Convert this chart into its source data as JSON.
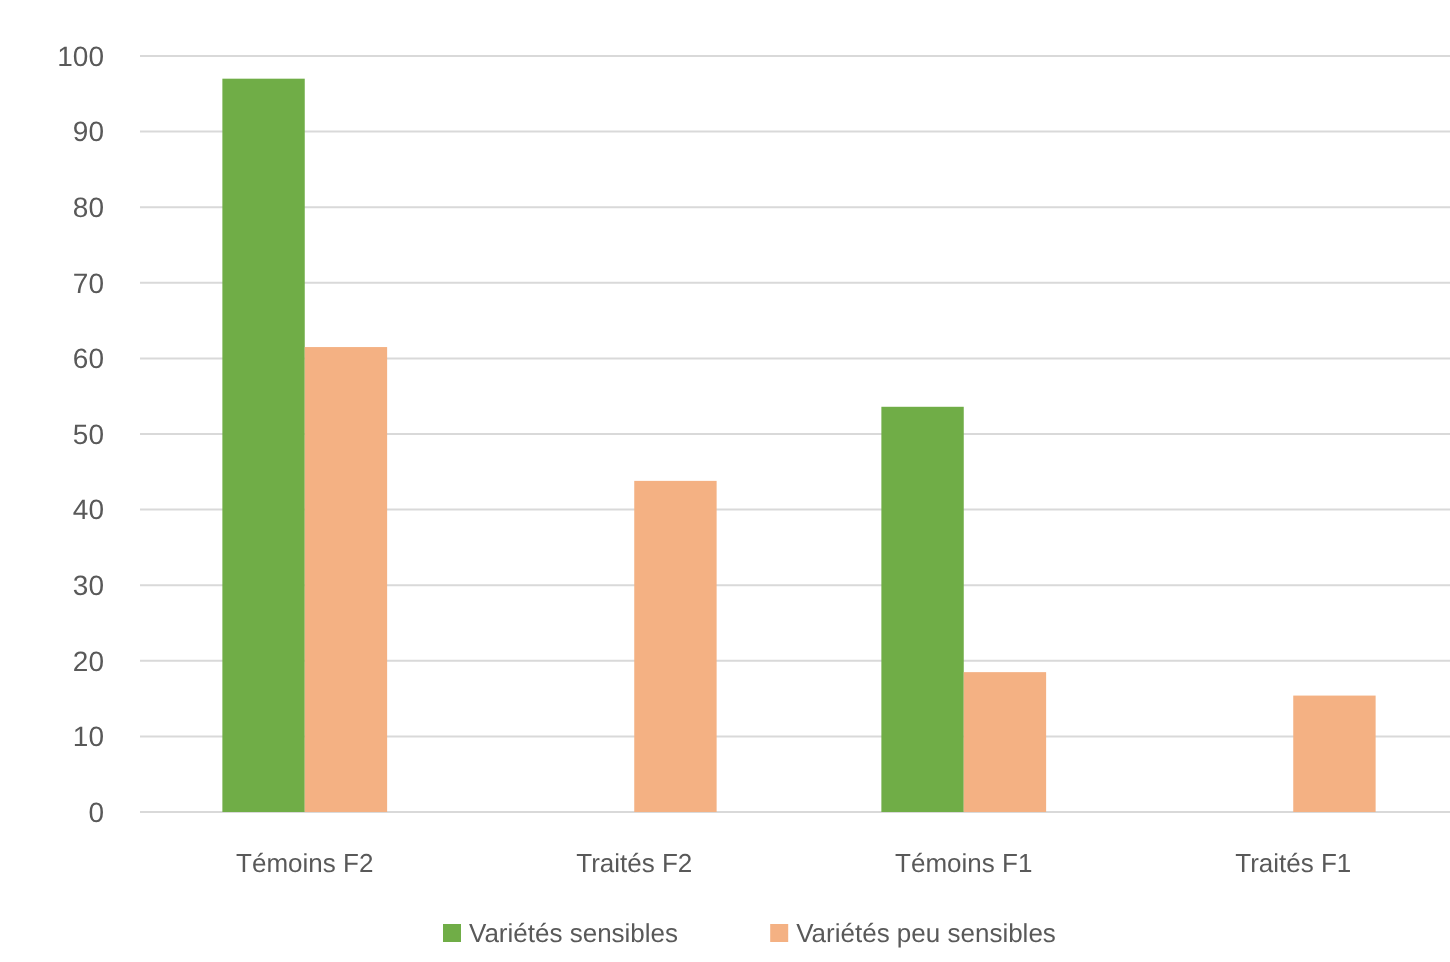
{
  "chart_data": {
    "type": "bar",
    "categories": [
      "Témoins F2",
      "Traités F2",
      "Témoins F1",
      "Traités F1"
    ],
    "series": [
      {
        "name": "Variétés sensibles",
        "color": "#70ad47",
        "values": [
          97,
          0,
          53.6,
          0
        ]
      },
      {
        "name": "Variétés peu sensibles",
        "color": "#f4b183",
        "values": [
          61.5,
          43.8,
          18.5,
          15.4
        ]
      }
    ],
    "ylim": [
      0,
      100
    ],
    "yticks": [
      0,
      10,
      20,
      30,
      40,
      50,
      60,
      70,
      80,
      90,
      100
    ],
    "grid": "y",
    "legend": "bottom"
  }
}
